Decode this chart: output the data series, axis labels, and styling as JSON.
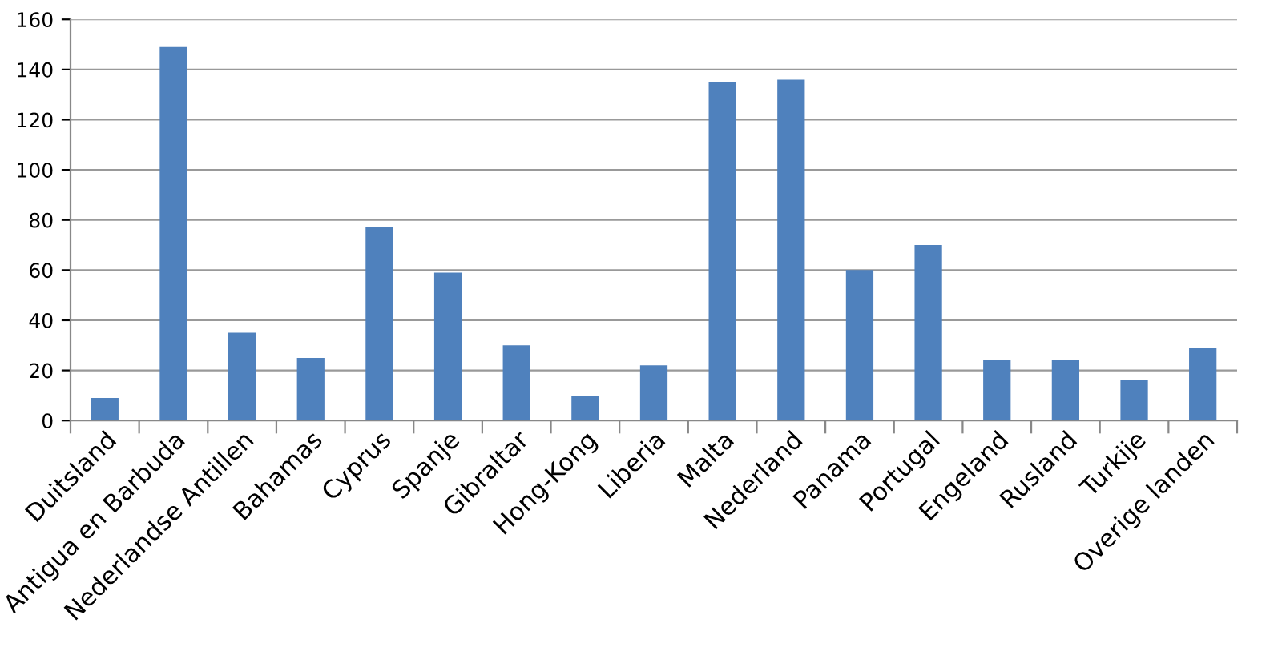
{
  "chart_data": {
    "type": "bar",
    "categories": [
      "Duitsland",
      "Antigua en Barbuda",
      "Nederlandse Antillen",
      "Bahamas",
      "Cyprus",
      "Spanje",
      "Gibraltar",
      "Hong-Kong",
      "Liberia",
      "Malta",
      "Nederland",
      "Panama",
      "Portugal",
      "Engeland",
      "Rusland",
      "Turkije",
      "Overige landen"
    ],
    "values": [
      9,
      149,
      35,
      25,
      77,
      59,
      30,
      10,
      22,
      135,
      136,
      60,
      70,
      24,
      24,
      16,
      29
    ],
    "color": "#4f81bd",
    "ylim": [
      0,
      160
    ],
    "yticks": [
      0,
      20,
      40,
      60,
      80,
      100,
      120,
      140,
      160
    ],
    "grid": "y"
  }
}
